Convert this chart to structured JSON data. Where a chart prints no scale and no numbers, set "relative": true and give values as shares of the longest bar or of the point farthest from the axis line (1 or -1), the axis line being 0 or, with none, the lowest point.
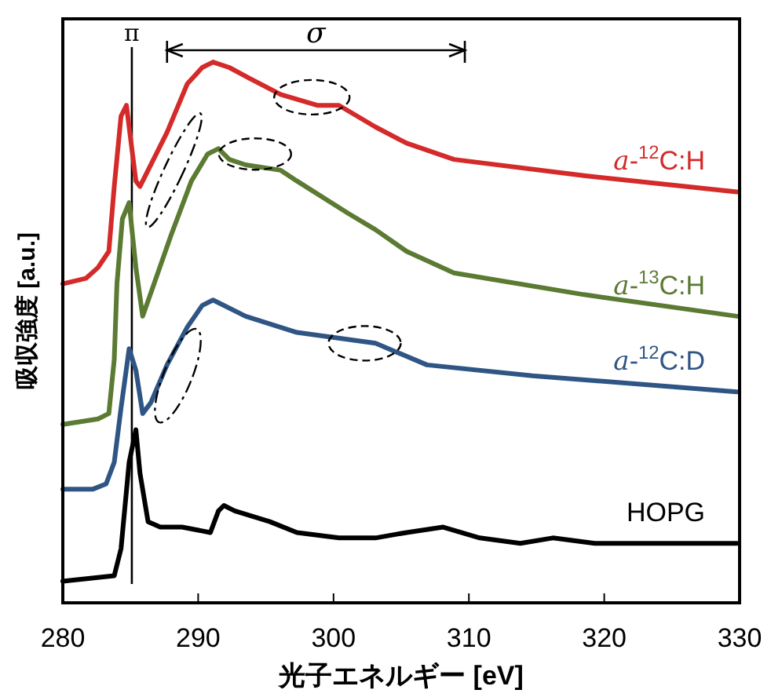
{
  "chart_data": {
    "type": "line",
    "relative": true,
    "xlabel": "光子エネルギー [eV]",
    "ylabel": "吸収強度 [a.u.]",
    "xlim": [
      280,
      330
    ],
    "xticks": [
      280,
      290,
      300,
      310,
      320,
      330
    ],
    "grid": false,
    "marker": "none",
    "line_style": "solid",
    "ref_lines": [
      {
        "axis": "x",
        "value": 285.1,
        "label": "π",
        "color": "#000000"
      }
    ],
    "annotations": [
      "σ"
    ],
    "series": [
      {
        "name": "*a*-$^{12}$C:H",
        "color": "#d42a2a",
        "x": [
          280,
          281.7,
          282.6,
          283.4,
          283.8,
          284.3,
          284.7,
          284.9,
          285.4,
          285.7,
          286.3,
          287.7,
          289.2,
          290.3,
          291.1,
          292.3,
          293.8,
          296.1,
          298.8,
          300.4,
          303.1,
          305.4,
          308.9,
          318.5,
          329.8
        ],
        "values": [
          0.59,
          0.6,
          0.62,
          0.65,
          0.77,
          0.9,
          0.92,
          0.88,
          0.78,
          0.77,
          0.8,
          0.87,
          0.96,
          0.99,
          1.0,
          0.99,
          0.97,
          0.94,
          0.92,
          0.92,
          0.88,
          0.85,
          0.82,
          0.79,
          0.76
        ]
      },
      {
        "name": "*a*-$^{13}$C:H",
        "color": "#5b7a32",
        "x": [
          280,
          282.6,
          283.4,
          283.8,
          284.0,
          284.4,
          284.9,
          285.4,
          285.9,
          286.6,
          288.0,
          289.5,
          290.7,
          291.5,
          292.3,
          293.5,
          296.1,
          297.3,
          301.1,
          303.1,
          305.4,
          308.9,
          318.5,
          329.8
        ],
        "values": [
          0.33,
          0.34,
          0.35,
          0.45,
          0.59,
          0.71,
          0.74,
          0.62,
          0.53,
          0.58,
          0.68,
          0.78,
          0.83,
          0.84,
          0.82,
          0.81,
          0.8,
          0.78,
          0.72,
          0.69,
          0.65,
          0.61,
          0.57,
          0.53
        ]
      },
      {
        "name": "*a*-$^{12}$C:D",
        "color": "#2f5585",
        "x": [
          280,
          282.2,
          283.2,
          283.8,
          284.3,
          284.9,
          285.4,
          285.9,
          286.5,
          287.7,
          289.2,
          290.3,
          291.1,
          293.5,
          297.3,
          303.1,
          306.9,
          314.7,
          329.8
        ],
        "values": [
          0.21,
          0.21,
          0.22,
          0.26,
          0.36,
          0.47,
          0.43,
          0.35,
          0.37,
          0.44,
          0.51,
          0.55,
          0.56,
          0.53,
          0.5,
          0.48,
          0.44,
          0.42,
          0.39
        ]
      },
      {
        "name": "HOPG",
        "color": "#000000",
        "x": [
          280,
          283.8,
          284.3,
          284.9,
          285.4,
          285.7,
          286.3,
          287.2,
          288.8,
          290.9,
          291.5,
          291.9,
          292.7,
          295.3,
          297.3,
          300.4,
          303.1,
          305.4,
          308.1,
          310.8,
          313.8,
          316.2,
          319.3,
          329.8
        ],
        "values": [
          0.04,
          0.05,
          0.1,
          0.26,
          0.32,
          0.24,
          0.15,
          0.14,
          0.14,
          0.13,
          0.17,
          0.18,
          0.17,
          0.15,
          0.13,
          0.12,
          0.12,
          0.13,
          0.14,
          0.12,
          0.11,
          0.12,
          0.11,
          0.11
        ]
      }
    ]
  }
}
